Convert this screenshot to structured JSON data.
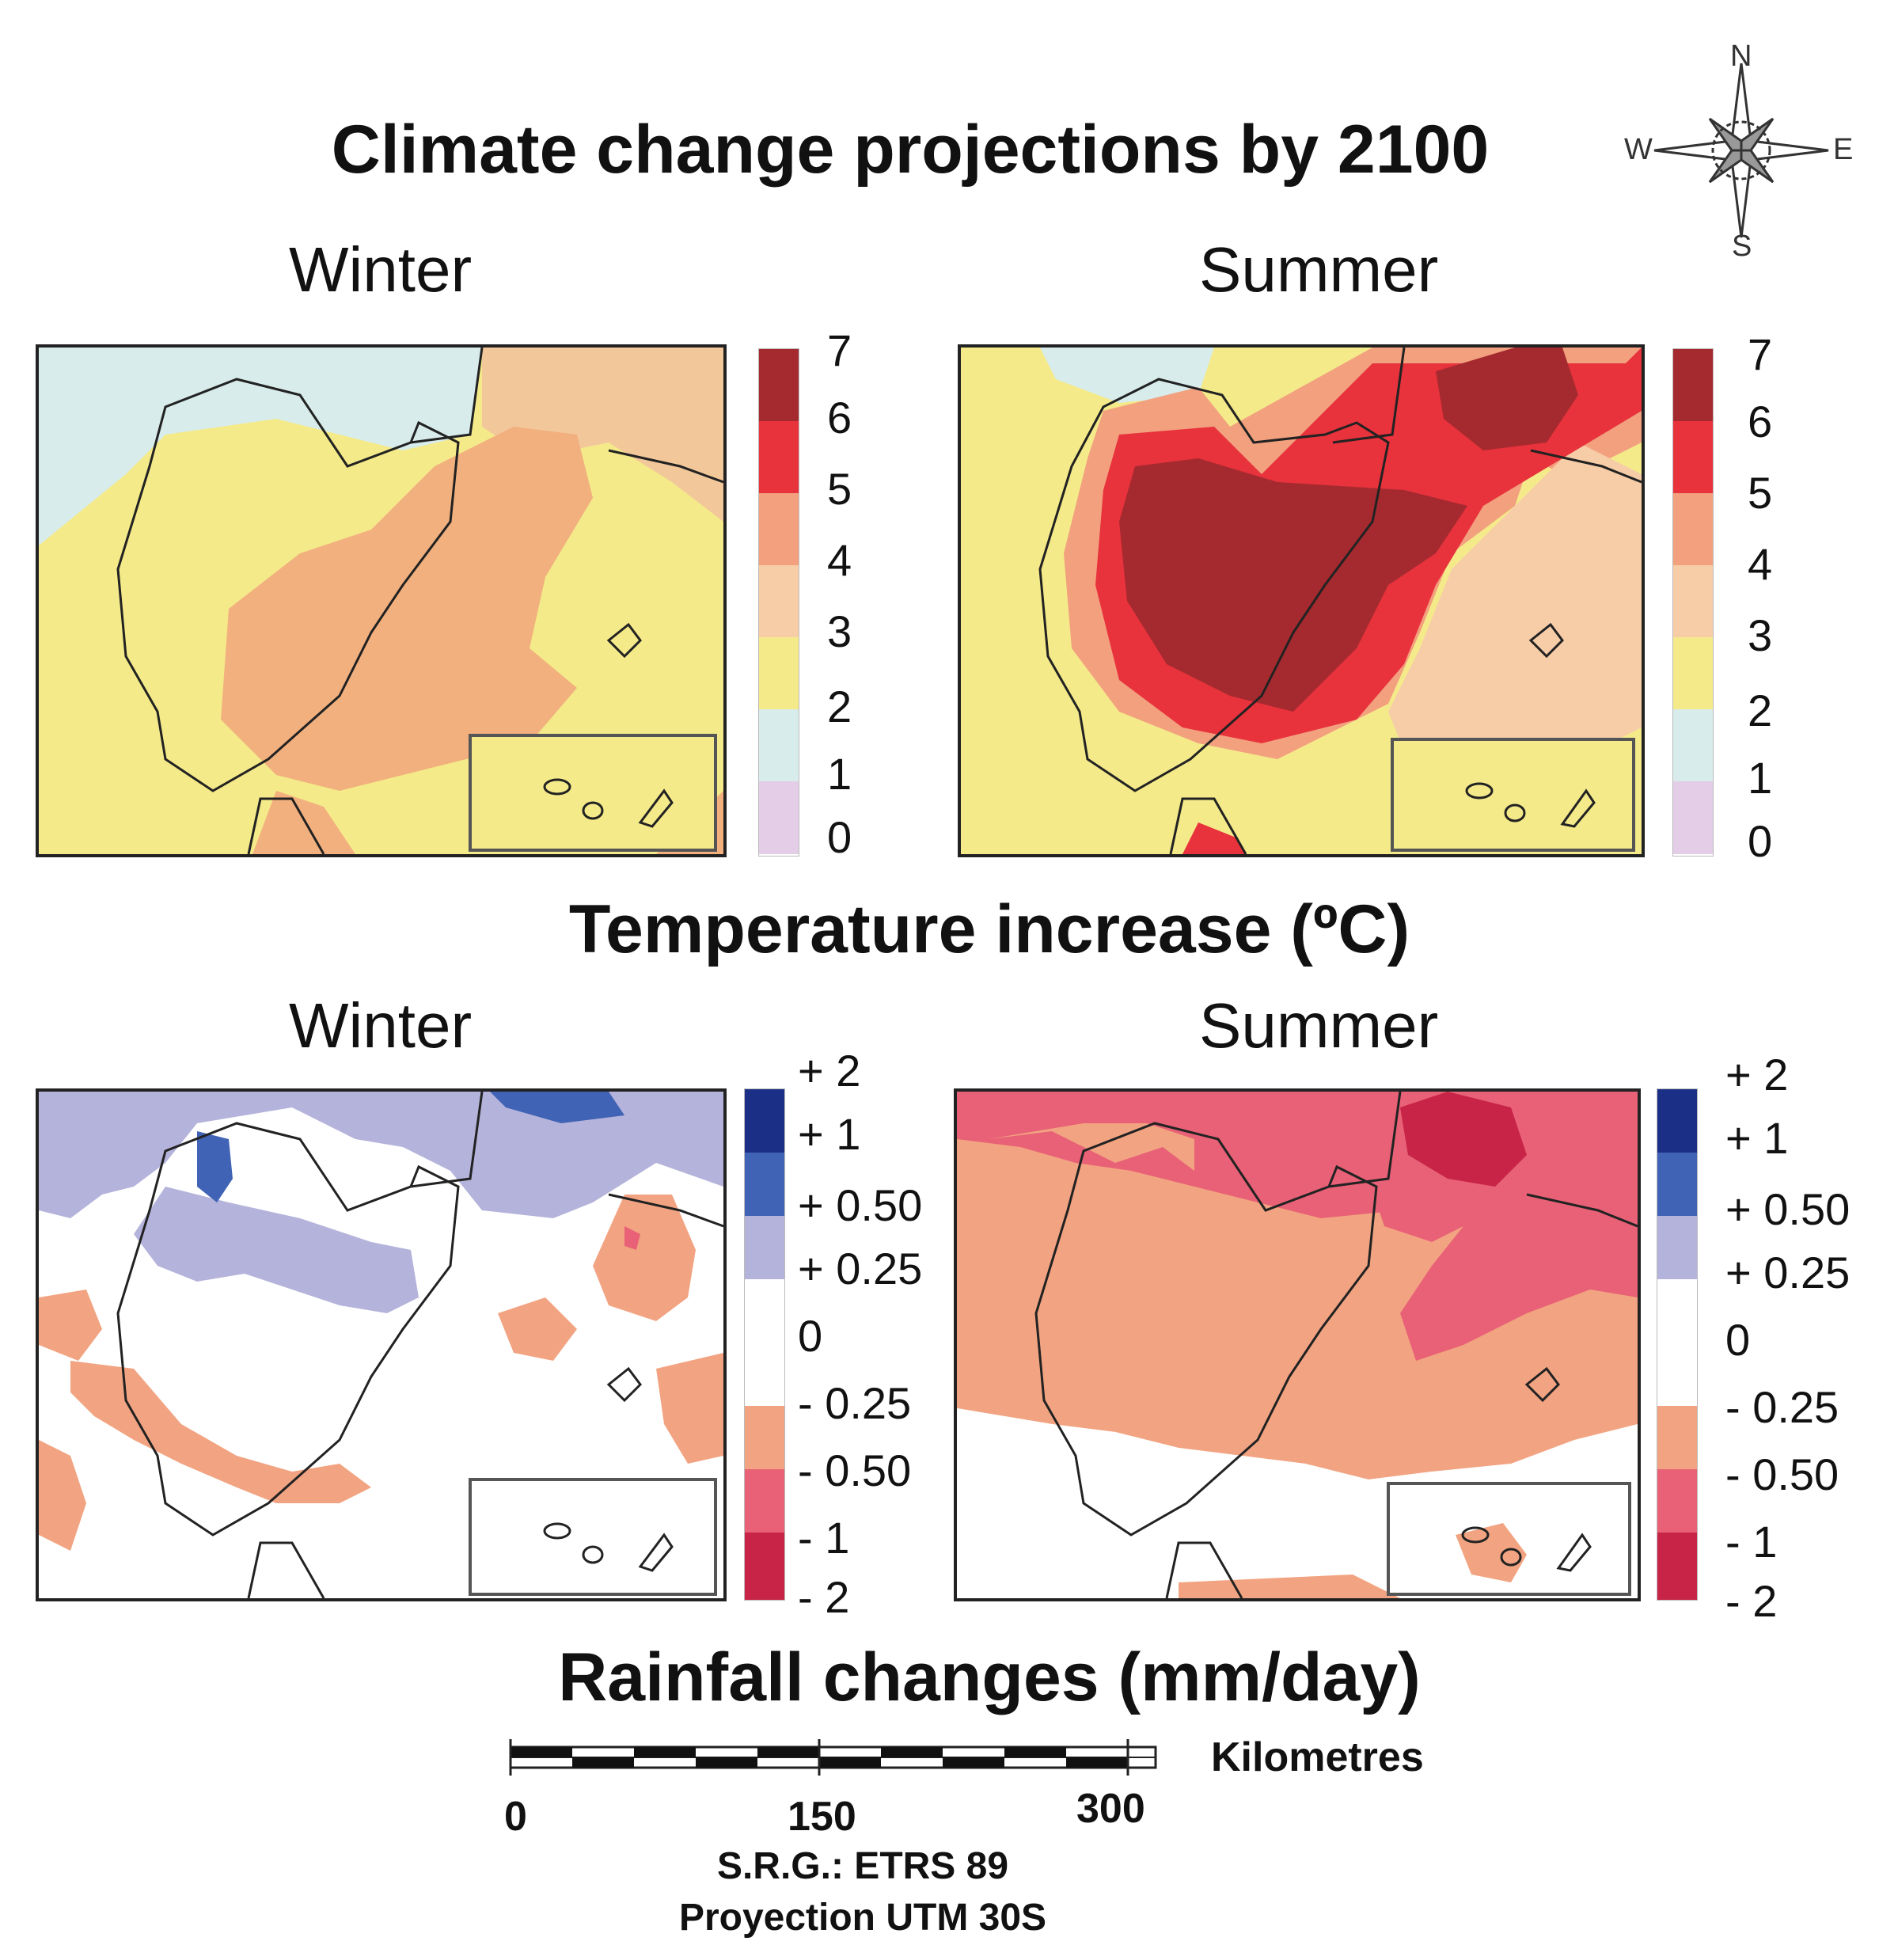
{
  "title": "Climate change projections by 2100",
  "seasons": {
    "winter": "Winter",
    "summer": "Summer"
  },
  "temperature": {
    "label": "Temperature increase (ºC)",
    "legend_ticks": [
      "7",
      "6",
      "5",
      "4",
      "3",
      "2",
      "1",
      "0"
    ],
    "legend_colors": [
      "#a52a2f",
      "#e8323c",
      "#f2a07e",
      "#f7cda8",
      "#f4ea8a",
      "#d8ecec",
      "#e3cde7"
    ]
  },
  "rainfall": {
    "label": "Rainfall changes (mm/day)",
    "legend_ticks": [
      "+ 2",
      "+ 1",
      "+ 0.50",
      "+ 0.25",
      "0",
      "- 0.25",
      "- 0.50",
      "- 1",
      "- 2"
    ],
    "legend_colors": [
      "#1c2f86",
      "#4063b5",
      "#b4b3db",
      "#ffffff",
      "#ffffff",
      "#f2a482",
      "#e86176",
      "#c72447"
    ]
  },
  "scale": {
    "unit_label": "Kilometres",
    "tick_labels": [
      "0",
      "150",
      "300"
    ]
  },
  "reference": {
    "srg": "S.R.G.: ETRS 89",
    "projection": "Proyection UTM 30S"
  },
  "compass": {
    "n": "N",
    "s": "S",
    "e": "E",
    "w": "W"
  }
}
